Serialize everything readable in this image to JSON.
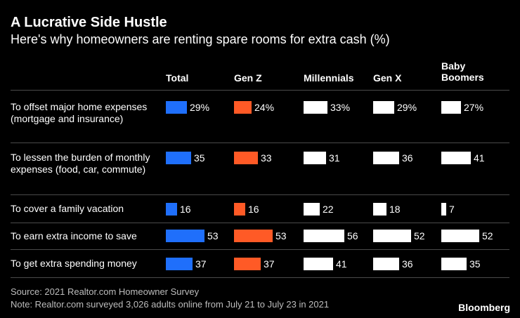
{
  "header": {
    "title": "A Lucrative Side Hustle",
    "subtitle": "Here's why homeowners are renting spare rooms for extra cash (%)"
  },
  "colors": {
    "Total": "#1f6ffb",
    "Gen Z": "#ff5a26",
    "Millennials": "#ffffff",
    "Gen X": "#ffffff",
    "Baby Boomers": "#ffffff"
  },
  "chart_data": {
    "type": "table",
    "title": "A Lucrative Side Hustle",
    "subtitle": "Here's why homeowners are renting spare rooms for extra cash (%)",
    "unit": "%",
    "columns": [
      "Total",
      "Gen Z",
      "Millennials",
      "Gen X",
      "Baby Boomers"
    ],
    "rows": [
      {
        "label": "To offset major home expenses (mortgage and insurance)",
        "values": [
          29,
          24,
          33,
          29,
          27
        ],
        "labels": [
          "29%",
          "24%",
          "33%",
          "29%",
          "27%"
        ]
      },
      {
        "label": "To lessen the burden of monthly expenses (food, car, commute)",
        "values": [
          35,
          33,
          31,
          36,
          41
        ],
        "labels": [
          "35",
          "33",
          "31",
          "36",
          "41"
        ]
      },
      {
        "label": "To cover a family vacation",
        "values": [
          16,
          16,
          22,
          18,
          7
        ],
        "labels": [
          "16",
          "16",
          "22",
          "18",
          "7"
        ]
      },
      {
        "label": "To earn extra income to save",
        "values": [
          53,
          53,
          56,
          52,
          52
        ],
        "labels": [
          "53",
          "53",
          "56",
          "52",
          "52"
        ]
      },
      {
        "label": "To get extra spending money",
        "values": [
          37,
          37,
          41,
          36,
          35
        ],
        "labels": [
          "37",
          "37",
          "41",
          "36",
          "35"
        ]
      }
    ]
  },
  "footer": {
    "source": "Source: 2021 Realtor.com Homeowner Survey",
    "note": "Note: Realtor.com surveyed 3,026 adults online from July 21 to July 23 in 2021",
    "brand": "Bloomberg"
  }
}
